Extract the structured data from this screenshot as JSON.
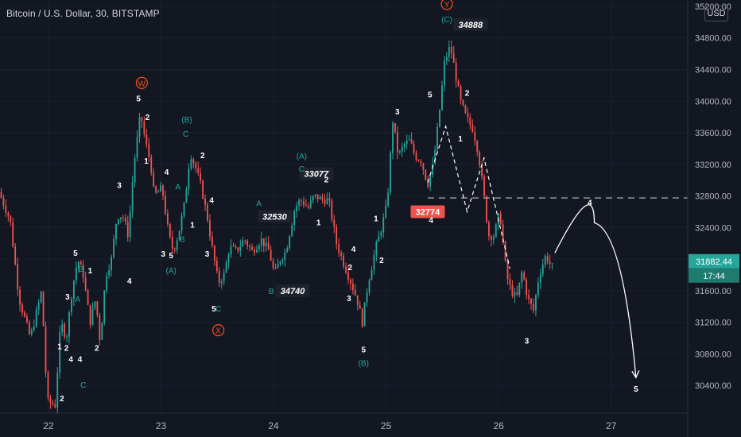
{
  "header": {
    "title": "Bitcoin / U.S. Dollar, 30, BITSTAMP",
    "currency": "USD"
  },
  "price_tag": {
    "price": "31882.44",
    "countdown": "17:44"
  },
  "colors": {
    "background": "#131722",
    "up": "#26a69a",
    "down": "#ef5350",
    "grid": "#1c2030",
    "axis_text": "#b2b5be",
    "wave_white": "#ffffff",
    "wave_teal": "#26a69a",
    "wave_orange": "#f4511e"
  },
  "chart_data": {
    "type": "candlestick",
    "title": "Bitcoin / U.S. Dollar, 30, BITSTAMP",
    "xlabel": "",
    "ylabel": "",
    "x_ticks": [
      "22",
      "23",
      "24",
      "25",
      "26",
      "27"
    ],
    "y_ticks": [
      "30400.00",
      "30800.00",
      "31200.00",
      "31600.00",
      "32000.00",
      "32400.00",
      "32800.00",
      "33200.00",
      "33600.00",
      "34000.00",
      "34400.00",
      "34800.00",
      "35200.00"
    ],
    "ylim": [
      30050,
      35280
    ],
    "xlim": [
      21.57,
      27.68
    ],
    "price_path": [
      [
        21.57,
        32850
      ],
      [
        21.67,
        32500
      ],
      [
        21.75,
        31500
      ],
      [
        21.85,
        31000
      ],
      [
        21.95,
        31600
      ],
      [
        22.0,
        30200
      ],
      [
        22.07,
        30150
      ],
      [
        22.12,
        31200
      ],
      [
        22.17,
        31000
      ],
      [
        22.22,
        31600
      ],
      [
        22.27,
        32000
      ],
      [
        22.32,
        31800
      ],
      [
        22.38,
        31200
      ],
      [
        22.43,
        31500
      ],
      [
        22.47,
        30950
      ],
      [
        22.52,
        31800
      ],
      [
        22.57,
        32000
      ],
      [
        22.62,
        32550
      ],
      [
        22.67,
        32550
      ],
      [
        22.72,
        32300
      ],
      [
        22.77,
        33200
      ],
      [
        22.83,
        33850
      ],
      [
        22.87,
        33500
      ],
      [
        22.92,
        33200
      ],
      [
        22.95,
        32800
      ],
      [
        23.02,
        32900
      ],
      [
        23.08,
        32300
      ],
      [
        23.12,
        32100
      ],
      [
        23.17,
        32350
      ],
      [
        23.22,
        32700
      ],
      [
        23.27,
        33350
      ],
      [
        23.32,
        33150
      ],
      [
        23.37,
        32900
      ],
      [
        23.42,
        32550
      ],
      [
        23.47,
        32100
      ],
      [
        23.52,
        31700
      ],
      [
        23.57,
        31800
      ],
      [
        23.62,
        32150
      ],
      [
        23.68,
        32100
      ],
      [
        23.75,
        32250
      ],
      [
        23.82,
        32100
      ],
      [
        23.9,
        32250
      ],
      [
        23.97,
        32100
      ],
      [
        24.02,
        31800
      ],
      [
        24.07,
        32000
      ],
      [
        24.12,
        32100
      ],
      [
        24.2,
        32650
      ],
      [
        24.25,
        32750
      ],
      [
        24.32,
        32650
      ],
      [
        24.37,
        32800
      ],
      [
        24.45,
        32750
      ],
      [
        24.5,
        32750
      ],
      [
        24.57,
        32200
      ],
      [
        24.62,
        32000
      ],
      [
        24.7,
        31700
      ],
      [
        24.75,
        31500
      ],
      [
        24.8,
        31200
      ],
      [
        24.85,
        31700
      ],
      [
        24.92,
        32150
      ],
      [
        24.97,
        32400
      ],
      [
        25.02,
        32700
      ],
      [
        25.07,
        33750
      ],
      [
        25.12,
        33300
      ],
      [
        25.17,
        33450
      ],
      [
        25.22,
        33500
      ],
      [
        25.27,
        33300
      ],
      [
        25.32,
        33250
      ],
      [
        25.38,
        32950
      ],
      [
        25.43,
        33200
      ],
      [
        25.48,
        33800
      ],
      [
        25.53,
        34500
      ],
      [
        25.58,
        34700
      ],
      [
        25.62,
        34400
      ],
      [
        25.67,
        34000
      ],
      [
        25.72,
        33800
      ],
      [
        25.78,
        33650
      ],
      [
        25.83,
        33350
      ],
      [
        25.88,
        32800
      ],
      [
        25.92,
        32300
      ],
      [
        25.97,
        32300
      ],
      [
        26.02,
        32600
      ],
      [
        26.08,
        31800
      ],
      [
        26.12,
        31600
      ],
      [
        26.17,
        31500
      ],
      [
        26.22,
        31850
      ],
      [
        26.27,
        31500
      ],
      [
        26.32,
        31350
      ],
      [
        26.37,
        31800
      ],
      [
        26.43,
        32050
      ],
      [
        26.48,
        31900
      ]
    ],
    "candle_interval_minutes": 30,
    "annotations": [
      {
        "label": "32530",
        "price": 32530,
        "at": [
          24.01,
          32540
        ],
        "style": "white-italic-box"
      },
      {
        "label": "33077",
        "price": 33077,
        "at": [
          24.38,
          33080
        ],
        "style": "white-italic-box"
      },
      {
        "label": "34740",
        "price": 34740,
        "at": [
          24.17,
          31600
        ],
        "style": "white-italic-box"
      },
      {
        "label": "34888",
        "price": 34888,
        "at": [
          25.75,
          34970
        ],
        "style": "white-italic-box"
      },
      {
        "label": "32774",
        "price": 32774,
        "at": [
          25.37,
          32600
        ],
        "style": "red-box"
      }
    ],
    "horizontal_line": {
      "price": 32774,
      "x_start": 25.37,
      "x_end": 27.68
    },
    "dashed_path": [
      [
        25.37,
        32970
      ],
      [
        25.53,
        33680
      ],
      [
        25.72,
        32600
      ],
      [
        25.87,
        33280
      ],
      [
        26.1,
        31880
      ]
    ],
    "projection": {
      "from": [
        26.5,
        32080
      ],
      "peak": [
        26.85,
        32460
      ],
      "to": [
        27.22,
        30500
      ]
    },
    "wave_labels": [
      {
        "text": "2",
        "x": 22.12,
        "y": 30240,
        "color": "white"
      },
      {
        "text": "1",
        "x": 22.1,
        "y": 30900,
        "color": "white"
      },
      {
        "text": "4",
        "x": 22.2,
        "y": 30740,
        "color": "white"
      },
      {
        "text": "2",
        "x": 22.16,
        "y": 30880,
        "color": "white"
      },
      {
        "text": "3",
        "x": 22.17,
        "y": 31530,
        "color": "white"
      },
      {
        "text": "A",
        "x": 22.26,
        "y": 31500,
        "color": "teal"
      },
      {
        "text": "5",
        "x": 22.24,
        "y": 32080,
        "color": "white"
      },
      {
        "text": "B",
        "x": 22.29,
        "y": 31880,
        "color": "teal"
      },
      {
        "text": "1",
        "x": 22.37,
        "y": 31860,
        "color": "white"
      },
      {
        "text": "4",
        "x": 22.28,
        "y": 30740,
        "color": "white"
      },
      {
        "text": "C",
        "x": 22.31,
        "y": 30410,
        "color": "teal"
      },
      {
        "text": "2",
        "x": 22.43,
        "y": 30880,
        "color": "white"
      },
      {
        "text": "4",
        "x": 22.72,
        "y": 31730,
        "color": "white"
      },
      {
        "text": "3",
        "x": 22.63,
        "y": 32940,
        "color": "white"
      },
      {
        "text": "5",
        "x": 22.8,
        "y": 34040,
        "color": "white"
      },
      {
        "text": "W",
        "x": 22.83,
        "y": 34230,
        "color": "orange-circle"
      },
      {
        "text": "2",
        "x": 22.88,
        "y": 33800,
        "color": "white"
      },
      {
        "text": "1",
        "x": 22.87,
        "y": 33250,
        "color": "white"
      },
      {
        "text": "4",
        "x": 23.05,
        "y": 33110,
        "color": "white"
      },
      {
        "text": "A",
        "x": 23.15,
        "y": 32920,
        "color": "teal"
      },
      {
        "text": "(B)",
        "x": 23.23,
        "y": 33770,
        "color": "teal"
      },
      {
        "text": "C",
        "x": 23.22,
        "y": 33590,
        "color": "teal"
      },
      {
        "text": "2",
        "x": 23.37,
        "y": 33320,
        "color": "white"
      },
      {
        "text": "4",
        "x": 23.45,
        "y": 32750,
        "color": "white"
      },
      {
        "text": "1",
        "x": 23.28,
        "y": 32440,
        "color": "white"
      },
      {
        "text": "B",
        "x": 23.19,
        "y": 32260,
        "color": "teal"
      },
      {
        "text": "3",
        "x": 23.02,
        "y": 32070,
        "color": "white"
      },
      {
        "text": "5",
        "x": 23.09,
        "y": 32050,
        "color": "white"
      },
      {
        "text": "(A)",
        "x": 23.09,
        "y": 31860,
        "color": "teal"
      },
      {
        "text": "3",
        "x": 23.41,
        "y": 32070,
        "color": "white"
      },
      {
        "text": "5",
        "x": 23.47,
        "y": 31380,
        "color": "white"
      },
      {
        "text": "C",
        "x": 23.51,
        "y": 31380,
        "color": "teal"
      },
      {
        "text": "X",
        "x": 23.51,
        "y": 31100,
        "color": "orange-circle"
      },
      {
        "text": "A",
        "x": 23.87,
        "y": 32710,
        "color": "teal"
      },
      {
        "text": "B",
        "x": 23.98,
        "y": 31600,
        "color": "teal"
      },
      {
        "text": "(A)",
        "x": 24.25,
        "y": 33310,
        "color": "teal"
      },
      {
        "text": "C",
        "x": 24.25,
        "y": 33150,
        "color": "teal"
      },
      {
        "text": "2",
        "x": 24.47,
        "y": 33010,
        "color": "white"
      },
      {
        "text": "1",
        "x": 24.4,
        "y": 32470,
        "color": "white"
      },
      {
        "text": "4",
        "x": 24.71,
        "y": 32130,
        "color": "white"
      },
      {
        "text": "2",
        "x": 24.68,
        "y": 31900,
        "color": "white"
      },
      {
        "text": "3",
        "x": 24.67,
        "y": 31510,
        "color": "white"
      },
      {
        "text": "5",
        "x": 24.8,
        "y": 30860,
        "color": "white"
      },
      {
        "text": "(B)",
        "x": 24.8,
        "y": 30690,
        "color": "teal"
      },
      {
        "text": "1",
        "x": 24.91,
        "y": 32520,
        "color": "white"
      },
      {
        "text": "2",
        "x": 24.96,
        "y": 31990,
        "color": "white"
      },
      {
        "text": "3",
        "x": 25.1,
        "y": 33870,
        "color": "white"
      },
      {
        "text": "4",
        "x": 25.4,
        "y": 32500,
        "color": "white"
      },
      {
        "text": "5",
        "x": 25.39,
        "y": 34090,
        "color": "white"
      },
      {
        "text": "Y",
        "x": 25.54,
        "y": 35230,
        "color": "orange-circle"
      },
      {
        "text": "(C)",
        "x": 25.54,
        "y": 35040,
        "color": "teal"
      },
      {
        "text": "2",
        "x": 25.72,
        "y": 34110,
        "color": "white"
      },
      {
        "text": "1",
        "x": 25.66,
        "y": 33530,
        "color": "white"
      },
      {
        "text": "4",
        "x": 26.81,
        "y": 32720,
        "color": "white"
      },
      {
        "text": "3",
        "x": 26.25,
        "y": 30970,
        "color": "white"
      },
      {
        "text": "5",
        "x": 27.22,
        "y": 30360,
        "color": "white"
      }
    ],
    "grid": true,
    "legend": "none"
  }
}
